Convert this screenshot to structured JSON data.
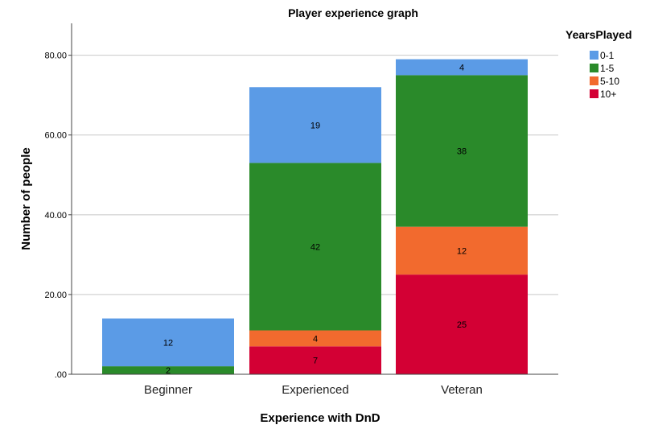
{
  "chart_data": {
    "type": "bar",
    "stacked": true,
    "title": "Player experience graph",
    "xlabel": "Experience with DnD",
    "ylabel": "Number of people",
    "categories": [
      "Beginner",
      "Experienced",
      "Veteran"
    ],
    "ylim": [
      0,
      88
    ],
    "yticks": [
      0,
      20,
      40,
      60,
      80
    ],
    "ytick_labels": [
      ".00",
      "20.00",
      "40.00",
      "60.00",
      "80.00"
    ],
    "grid": true,
    "legend": {
      "title": "YearsPlayed",
      "position": "top-right"
    },
    "series": [
      {
        "name": "10+",
        "color": "#d30034",
        "values": [
          0,
          7,
          25
        ]
      },
      {
        "name": "5-10",
        "color": "#f26a2e",
        "values": [
          0,
          4,
          12
        ]
      },
      {
        "name": "1-5",
        "color": "#2a8a2a",
        "values": [
          2,
          42,
          38
        ]
      },
      {
        "name": "0-1",
        "color": "#5b9be6",
        "values": [
          12,
          19,
          4
        ]
      }
    ],
    "legend_order": [
      "0-1",
      "1-5",
      "5-10",
      "10+"
    ]
  }
}
